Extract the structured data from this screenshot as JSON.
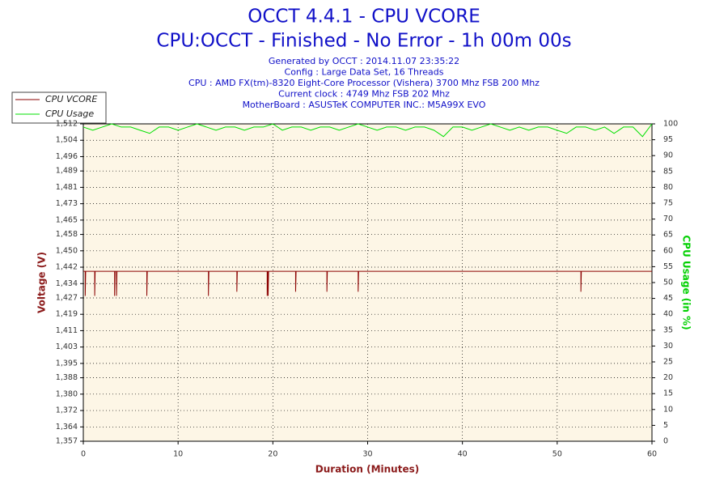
{
  "chart_data": {
    "type": "line",
    "title": "OCCT 4.4.1 - CPU VCORE",
    "subtitle": "CPU:OCCT - Finished - No Error - 1h 00m 00s",
    "info": [
      "Generated by OCCT : 2014.11.07 23:35:22",
      "Config : Large Data Set, 16 Threads",
      "CPU : AMD FX(tm)-8320 Eight-Core Processor (Vishera) 3700 Mhz FSB 200 Mhz",
      "Current clock : 4749 Mhz FSB 202 Mhz",
      "MotherBoard : ASUSTeK COMPUTER INC.: M5A99X EVO"
    ],
    "xlabel": "Duration (Minutes)",
    "ylabel": "Voltage (V)",
    "y2label": "CPU Usage (in %)",
    "xlim": [
      0,
      60
    ],
    "xticks": [
      0,
      10,
      20,
      30,
      40,
      50,
      60
    ],
    "ylim": [
      1.357,
      1.512
    ],
    "yticks": [
      {
        "value": 1.357,
        "label": "1,357"
      },
      {
        "value": 1.364,
        "label": "1,364"
      },
      {
        "value": 1.372,
        "label": "1,372"
      },
      {
        "value": 1.38,
        "label": "1,380"
      },
      {
        "value": 1.388,
        "label": "1,388"
      },
      {
        "value": 1.395,
        "label": "1,395"
      },
      {
        "value": 1.403,
        "label": "1,403"
      },
      {
        "value": 1.411,
        "label": "1,411"
      },
      {
        "value": 1.419,
        "label": "1,419"
      },
      {
        "value": 1.427,
        "label": "1,427"
      },
      {
        "value": 1.434,
        "label": "1,434"
      },
      {
        "value": 1.442,
        "label": "1,442"
      },
      {
        "value": 1.45,
        "label": "1,450"
      },
      {
        "value": 1.458,
        "label": "1,458"
      },
      {
        "value": 1.465,
        "label": "1,465"
      },
      {
        "value": 1.473,
        "label": "1,473"
      },
      {
        "value": 1.481,
        "label": "1,481"
      },
      {
        "value": 1.489,
        "label": "1,489"
      },
      {
        "value": 1.496,
        "label": "1,496"
      },
      {
        "value": 1.504,
        "label": "1,504"
      },
      {
        "value": 1.512,
        "label": "1,512"
      }
    ],
    "y2lim": [
      0,
      100
    ],
    "y2ticks": [
      0,
      5,
      10,
      15,
      20,
      25,
      30,
      35,
      40,
      45,
      50,
      55,
      60,
      65,
      70,
      75,
      80,
      85,
      90,
      95,
      100
    ],
    "grid": true,
    "legend": "top-left",
    "series": [
      {
        "name": "CPU VCORE",
        "color": "#8b0000",
        "x": [
          0,
          0.2,
          0.2,
          0.25,
          1.2,
          1.2,
          1.25,
          3.3,
          3.3,
          3.35,
          3.5,
          3.5,
          3.55,
          6.7,
          6.7,
          6.75,
          13.2,
          13.2,
          13.25,
          16.2,
          16.2,
          16.25,
          19.4,
          19.4,
          19.45,
          19.5,
          19.5,
          19.55,
          22.4,
          22.4,
          22.45,
          25.7,
          25.7,
          25.75,
          29,
          29,
          29.05,
          52.5,
          52.5,
          52.55,
          60
        ],
        "values": [
          1.44,
          1.44,
          1.428,
          1.44,
          1.44,
          1.428,
          1.44,
          1.44,
          1.428,
          1.44,
          1.44,
          1.428,
          1.44,
          1.44,
          1.428,
          1.44,
          1.44,
          1.428,
          1.44,
          1.44,
          1.43,
          1.44,
          1.44,
          1.428,
          1.44,
          1.44,
          1.428,
          1.44,
          1.44,
          1.43,
          1.44,
          1.44,
          1.43,
          1.44,
          1.44,
          1.43,
          1.44,
          1.44,
          1.43,
          1.44,
          1.44
        ]
      },
      {
        "name": "CPU Usage",
        "color": "#00e000",
        "axis": "y2",
        "x": [
          0,
          1,
          2,
          3,
          4,
          5,
          6,
          7,
          8,
          9,
          10,
          11,
          12,
          13,
          14,
          15,
          16,
          17,
          18,
          19,
          20,
          21,
          22,
          23,
          24,
          25,
          26,
          27,
          28,
          29,
          30,
          31,
          32,
          33,
          34,
          35,
          36,
          37,
          38,
          39,
          40,
          41,
          42,
          43,
          44,
          45,
          46,
          47,
          48,
          49,
          50,
          51,
          52,
          53,
          54,
          55,
          56,
          57,
          58,
          59,
          60
        ],
        "values": [
          99,
          98,
          99,
          100,
          99,
          99,
          98,
          97,
          99,
          99,
          98,
          99,
          100,
          99,
          98,
          99,
          99,
          98,
          99,
          99,
          100,
          98,
          99,
          99,
          98,
          99,
          99,
          98,
          99,
          100,
          99,
          98,
          99,
          99,
          98,
          99,
          99,
          98,
          96,
          99,
          99,
          98,
          99,
          100,
          99,
          98,
          99,
          98,
          99,
          99,
          98,
          97,
          99,
          99,
          98,
          99,
          97,
          99,
          99,
          96,
          100
        ]
      }
    ]
  }
}
